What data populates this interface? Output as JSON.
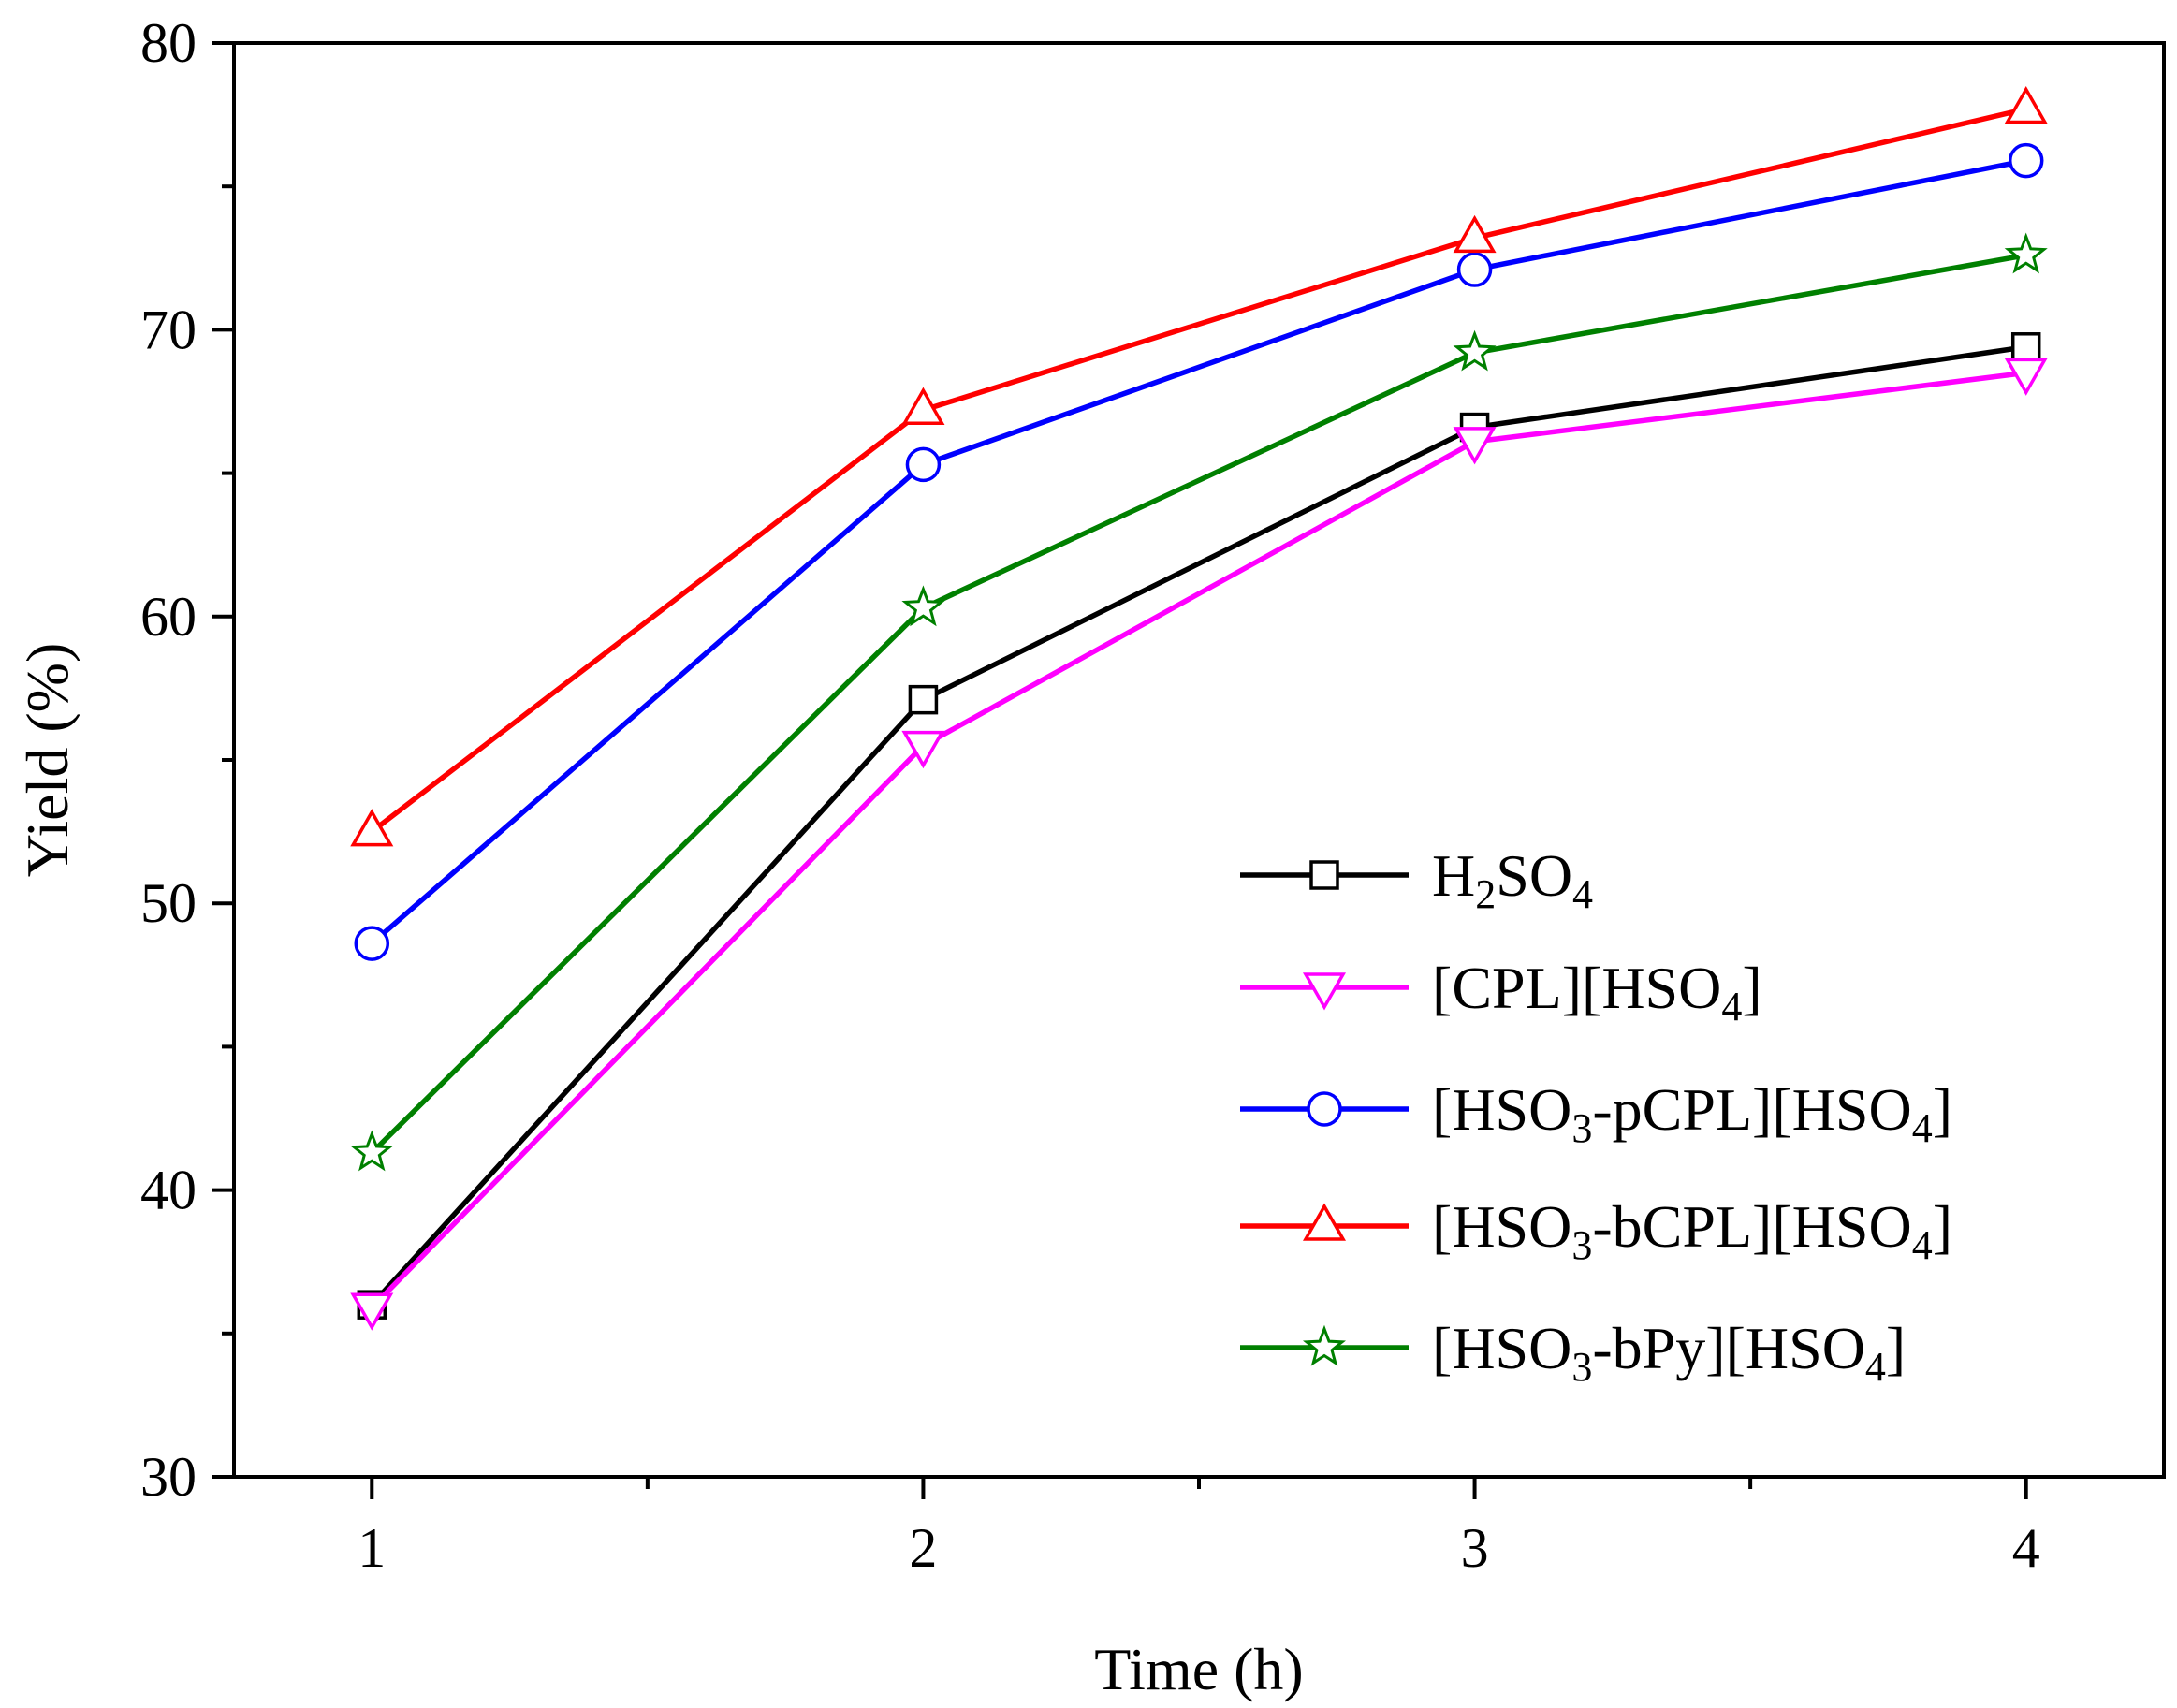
{
  "chart_data": {
    "type": "line",
    "title": "",
    "xlabel": "Time (h)",
    "ylabel": "Yield (%)",
    "x": [
      1,
      2,
      3,
      4
    ],
    "xlim": [
      0.75,
      4.25
    ],
    "ylim": [
      30,
      80
    ],
    "xticks": [
      1,
      2,
      3,
      4
    ],
    "xticks_minor": [
      1.5,
      2.5,
      3.5
    ],
    "yticks": [
      30,
      40,
      50,
      60,
      70,
      80
    ],
    "yticks_minor": [
      35,
      45,
      55,
      65,
      75
    ],
    "grid": false,
    "legend_position": "right",
    "series": [
      {
        "name": "H2SO4",
        "label_parts": [
          [
            "H",
            ""
          ],
          [
            "2",
            "sub"
          ],
          [
            "SO",
            ""
          ],
          [
            "4",
            "sub"
          ]
        ],
        "color": "#000000",
        "marker": "square",
        "values": [
          36.0,
          57.1,
          66.6,
          69.4
        ]
      },
      {
        "name": "[CPL][HSO4]",
        "label_parts": [
          [
            "[CPL][HSO",
            ""
          ],
          [
            "4",
            "sub"
          ],
          [
            "]",
            ""
          ]
        ],
        "color": "#FF00FF",
        "marker": "triangle-down",
        "values": [
          35.9,
          55.5,
          66.1,
          68.5
        ]
      },
      {
        "name": "[HSO3-pCPL][HSO4]",
        "label_parts": [
          [
            "[HSO",
            ""
          ],
          [
            "3",
            "sub"
          ],
          [
            "-pCPL][HSO",
            ""
          ],
          [
            "4",
            "sub"
          ],
          [
            "]",
            ""
          ]
        ],
        "color": "#0000FF",
        "marker": "circle",
        "values": [
          48.6,
          65.3,
          72.1,
          75.9
        ]
      },
      {
        "name": "[HSO3-bCPL][HSO4]",
        "label_parts": [
          [
            "[HSO",
            ""
          ],
          [
            "3",
            "sub"
          ],
          [
            "-bCPL][HSO",
            ""
          ],
          [
            "4",
            "sub"
          ],
          [
            "]",
            ""
          ]
        ],
        "color": "#FF0000",
        "marker": "triangle-up",
        "values": [
          52.5,
          67.2,
          73.2,
          77.7
        ]
      },
      {
        "name": "[HSO3-bPy][HSO4]",
        "label_parts": [
          [
            "[HSO",
            ""
          ],
          [
            "3",
            "sub"
          ],
          [
            "-bPy][HSO",
            ""
          ],
          [
            "4",
            "sub"
          ],
          [
            "]",
            ""
          ]
        ],
        "color": "#008000",
        "marker": "star",
        "values": [
          41.3,
          60.3,
          69.2,
          72.6
        ]
      }
    ]
  }
}
